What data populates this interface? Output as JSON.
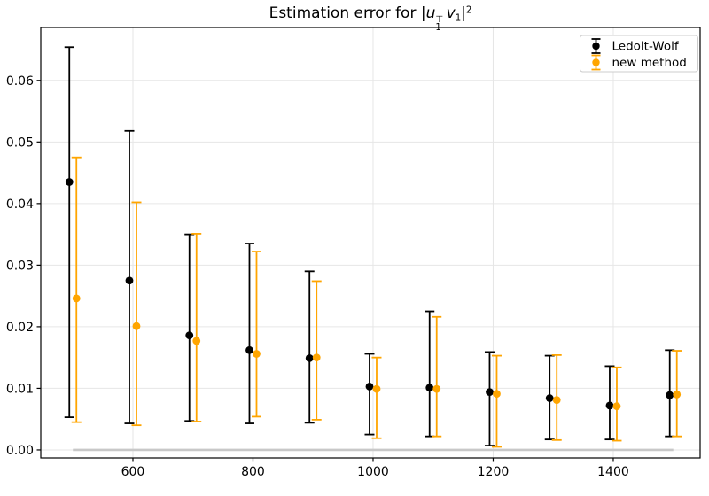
{
  "figure": {
    "title_plain": "Estimation error for |u1^T v1|^2"
  },
  "chart_data": {
    "type": "errorbar",
    "title": "Estimation error for |u1^T v1|^2",
    "title_segments": [
      {
        "text": "Estimation error for |"
      },
      {
        "text": "u",
        "style": "italic"
      },
      {
        "stack_top": "⊤",
        "stack_bottom": "1"
      },
      {
        "text": " "
      },
      {
        "text": "v",
        "style": "italic"
      },
      {
        "text": "1",
        "style": "sub"
      },
      {
        "text": "|"
      },
      {
        "text": "2",
        "style": "sup"
      }
    ],
    "xlabel": "",
    "ylabel": "",
    "x": [
      500,
      600,
      700,
      800,
      900,
      1000,
      1100,
      1200,
      1300,
      1400,
      1500
    ],
    "series": [
      {
        "name": "Ledoit-Wolf",
        "color": "#000000",
        "y": [
          0.0435,
          0.0275,
          0.0186,
          0.0162,
          0.0149,
          0.0103,
          0.0101,
          0.0094,
          0.0084,
          0.0072,
          0.0089
        ],
        "err_low": [
          0.0053,
          0.0043,
          0.0047,
          0.0043,
          0.0044,
          0.0025,
          0.0022,
          0.0007,
          0.0017,
          0.0017,
          0.0022
        ],
        "err_high": [
          0.0654,
          0.0518,
          0.035,
          0.0335,
          0.029,
          0.0156,
          0.0225,
          0.0159,
          0.0153,
          0.0136,
          0.0162
        ]
      },
      {
        "name": "new method",
        "color": "#FFA500",
        "y": [
          0.0246,
          0.0201,
          0.0177,
          0.0156,
          0.015,
          0.0099,
          0.0099,
          0.0091,
          0.0081,
          0.0071,
          0.009
        ],
        "err_low": [
          0.0045,
          0.004,
          0.0046,
          0.0054,
          0.0049,
          0.0019,
          0.0022,
          0.0005,
          0.0016,
          0.0015,
          0.0022
        ],
        "err_high": [
          0.0475,
          0.0402,
          0.0351,
          0.0322,
          0.0274,
          0.015,
          0.0216,
          0.0153,
          0.0154,
          0.0134,
          0.0161
        ]
      }
    ],
    "baseline": {
      "y": 0.0,
      "x_start": 500,
      "x_end": 1500,
      "color": "#c8c8c8"
    },
    "x_ticks": [
      600,
      800,
      1000,
      1200,
      1400
    ],
    "y_ticks": [
      0.0,
      0.01,
      0.02,
      0.03,
      0.04,
      0.05,
      0.06
    ],
    "xlim": [
      446.5,
      1544.7
    ],
    "ylim": [
      -0.0013,
      0.0686
    ],
    "grid": true,
    "legend": {
      "position": "upper right",
      "entries": [
        "Ledoit-Wolf",
        "new method"
      ]
    },
    "colors": {
      "grid": "#e6e6e6",
      "spine": "#000000",
      "legend_border": "#cccccc",
      "background": "#ffffff"
    }
  }
}
